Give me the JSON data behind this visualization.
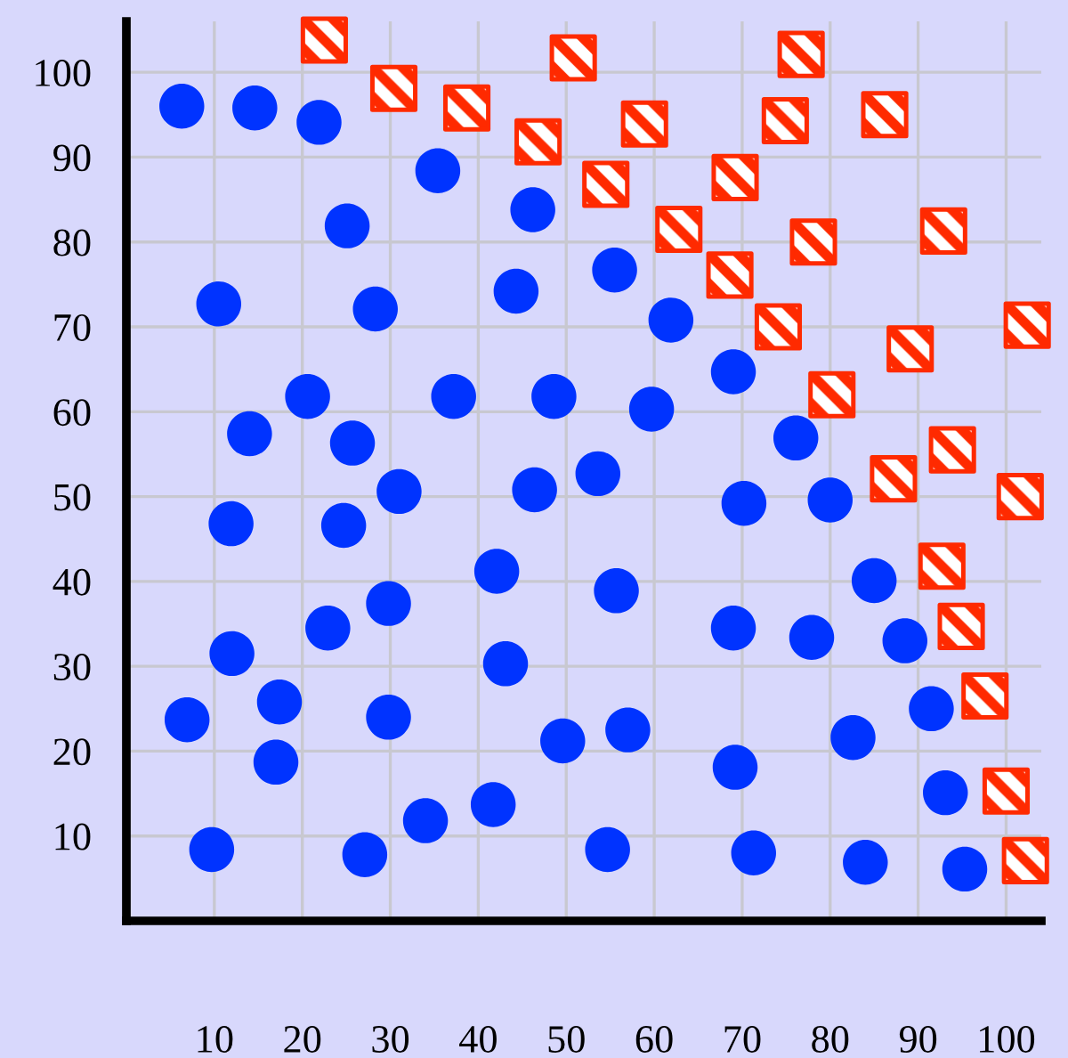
{
  "chart_data": {
    "type": "scatter",
    "xlim": [
      0,
      104
    ],
    "ylim": [
      0,
      106
    ],
    "xticks": [
      10,
      20,
      30,
      40,
      50,
      60,
      70,
      80,
      90,
      100
    ],
    "yticks": [
      10,
      20,
      30,
      40,
      50,
      60,
      70,
      80,
      90,
      100
    ],
    "grid": true,
    "series": [
      {
        "color": "#0033ff",
        "marker": "circle",
        "x": [
          6.3,
          14.6,
          21.9,
          35.4,
          25.1,
          46.2,
          10.5,
          28.3,
          44.3,
          55.5,
          61.9,
          69.0,
          20.6,
          37.2,
          48.6,
          59.7,
          14.0,
          25.7,
          31.0,
          46.4,
          53.6,
          76.1,
          11.9,
          24.7,
          70.2,
          80.0,
          42.1,
          55.7,
          29.8,
          22.9,
          85.0,
          12.0,
          43.1,
          69.0,
          77.9,
          88.5,
          17.4,
          6.9,
          29.8,
          49.6,
          57.0,
          82.6,
          91.5,
          17.0,
          69.2,
          93.1,
          34.0,
          41.7,
          9.7,
          27.1,
          54.7,
          71.3,
          84.0,
          95.3
        ],
        "values": [
          96.0,
          95.8,
          94.1,
          88.4,
          81.9,
          83.8,
          72.7,
          72.1,
          74.2,
          76.7,
          70.8,
          64.7,
          61.8,
          61.8,
          61.8,
          60.3,
          57.4,
          56.3,
          50.6,
          50.8,
          52.7,
          56.9,
          46.8,
          46.6,
          49.2,
          49.6,
          41.2,
          38.9,
          37.4,
          34.5,
          40.1,
          31.5,
          30.3,
          34.5,
          33.4,
          33.0,
          25.8,
          23.7,
          24.0,
          21.2,
          22.5,
          21.6,
          25.0,
          18.7,
          18.1,
          15.1,
          11.8,
          13.7,
          8.4,
          7.8,
          8.4,
          8.0,
          6.9,
          6.1
        ]
      },
      {
        "color": "#ff2a00",
        "marker": "square",
        "x": [
          22.5,
          30.4,
          38.7,
          50.8,
          46.8,
          58.9,
          54.5,
          76.7,
          86.2,
          74.9,
          69.2,
          62.8,
          78.1,
          92.9,
          68.6,
          74.1,
          102.4,
          80.2,
          89.1,
          93.9,
          87.2,
          101.6,
          92.7,
          94.9,
          97.6,
          100.0,
          102.2
        ],
        "values": [
          103.8,
          98.1,
          95.8,
          101.7,
          91.8,
          93.9,
          86.8,
          102.1,
          95.0,
          94.3,
          87.6,
          81.5,
          80.0,
          81.3,
          76.1,
          70.0,
          70.2,
          62.0,
          67.4,
          55.5,
          52.1,
          50.0,
          41.8,
          34.7,
          26.5,
          15.3,
          7.1
        ]
      }
    ]
  }
}
